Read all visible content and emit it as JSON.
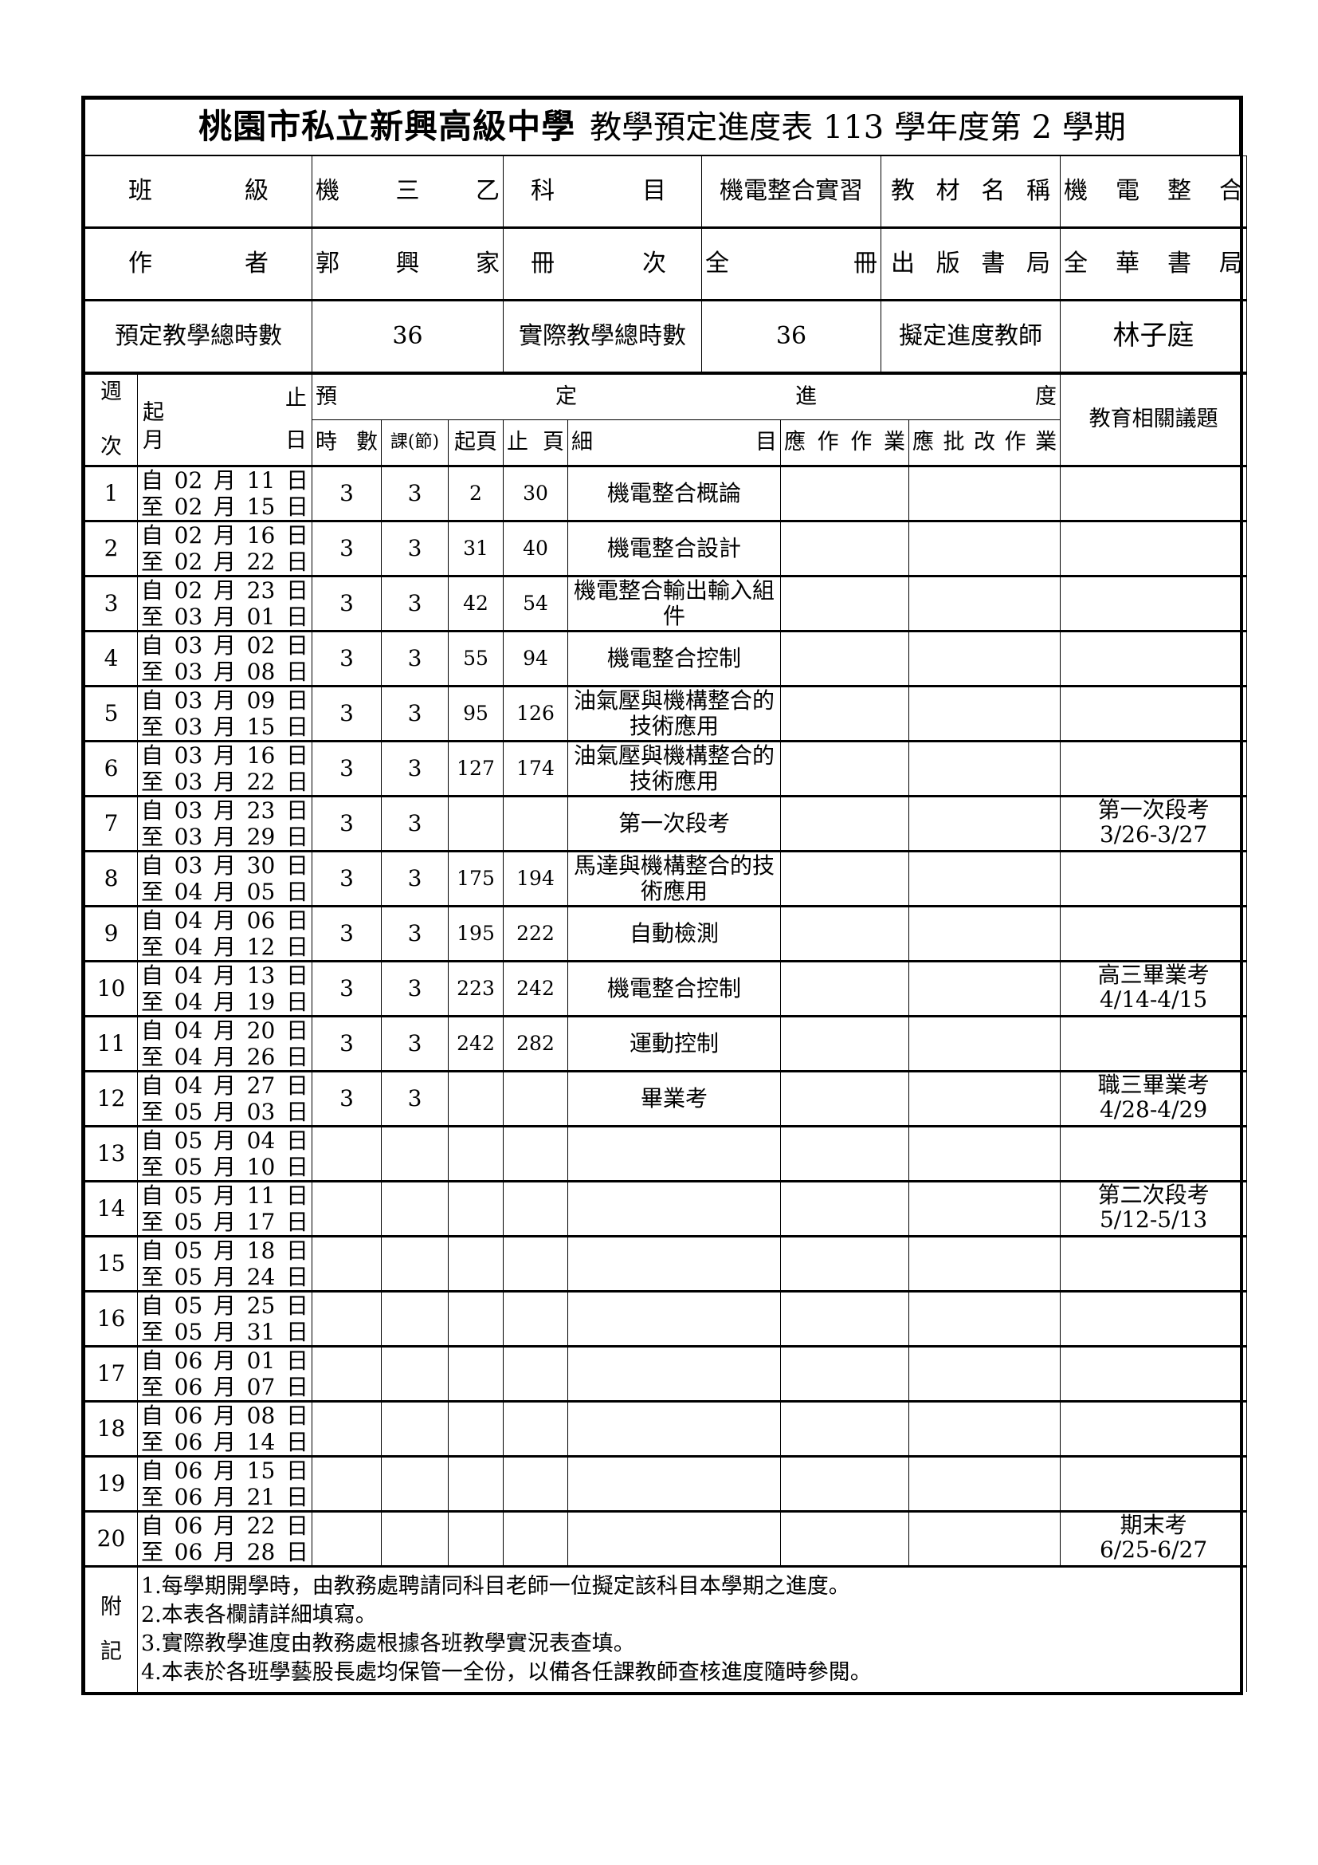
{
  "title": {
    "school": "桃園市私立新興高級中學",
    "subtitle": "教學預定進度表 113 學年度第 2 學期"
  },
  "info": {
    "class_label": [
      "班",
      "級"
    ],
    "class_value": [
      "機",
      "三",
      "乙"
    ],
    "subject_label": [
      "科",
      "目"
    ],
    "subject_value": "機電整合實習",
    "textbook_label": [
      "教",
      "材",
      "名",
      "稱"
    ],
    "textbook_value": [
      "機",
      "電",
      "整",
      "合"
    ],
    "author_label": [
      "作",
      "者"
    ],
    "author_value": [
      "郭",
      "興",
      "家"
    ],
    "volume_label": [
      "冊",
      "次"
    ],
    "volume_value": [
      "全",
      "冊"
    ],
    "publisher_label": [
      "出",
      "版",
      "書",
      "局"
    ],
    "publisher_value": [
      "全",
      "華",
      "書",
      "局"
    ],
    "planned_hours_label": "預定教學總時數",
    "planned_hours": "36",
    "actual_hours_label": "實際教學總時數",
    "actual_hours": "36",
    "teacher_label": "擬定進度教師",
    "teacher": "林子庭"
  },
  "header": {
    "week": [
      "週",
      "次"
    ],
    "start": "起",
    "end": "止",
    "month": "月",
    "day": "日",
    "progress": [
      "預",
      "定",
      "進",
      "度"
    ],
    "hours": [
      "時",
      "數"
    ],
    "lessons": "課(節)",
    "start_page": [
      "起",
      "頁"
    ],
    "end_page": [
      "止",
      "頁"
    ],
    "detail": [
      "細",
      "目"
    ],
    "homework": [
      "應",
      "作",
      "作",
      "業"
    ],
    "correction": [
      "應",
      "批",
      "改",
      "作",
      "業"
    ],
    "issues": "教育相關議題"
  },
  "date_words": {
    "from": "自",
    "to": "至",
    "month": "月",
    "day": "日"
  },
  "weeks": [
    {
      "week": "1",
      "from": [
        "02",
        "11"
      ],
      "to": [
        "02",
        "15"
      ],
      "hours": "3",
      "lessons": "3",
      "start": "2",
      "end": "30",
      "detail": "機電整合概論",
      "issue": [
        "",
        ""
      ]
    },
    {
      "week": "2",
      "from": [
        "02",
        "16"
      ],
      "to": [
        "02",
        "22"
      ],
      "hours": "3",
      "lessons": "3",
      "start": "31",
      "end": "40",
      "detail": "機電整合設計",
      "issue": [
        "",
        ""
      ]
    },
    {
      "week": "3",
      "from": [
        "02",
        "23"
      ],
      "to": [
        "03",
        "01"
      ],
      "hours": "3",
      "lessons": "3",
      "start": "42",
      "end": "54",
      "detail": "機電整合輸出輸入組件",
      "issue": [
        "",
        ""
      ]
    },
    {
      "week": "4",
      "from": [
        "03",
        "02"
      ],
      "to": [
        "03",
        "08"
      ],
      "hours": "3",
      "lessons": "3",
      "start": "55",
      "end": "94",
      "detail": "機電整合控制",
      "issue": [
        "",
        ""
      ]
    },
    {
      "week": "5",
      "from": [
        "03",
        "09"
      ],
      "to": [
        "03",
        "15"
      ],
      "hours": "3",
      "lessons": "3",
      "start": "95",
      "end": "126",
      "detail": "油氣壓與機構整合的技術應用",
      "issue": [
        "",
        ""
      ]
    },
    {
      "week": "6",
      "from": [
        "03",
        "16"
      ],
      "to": [
        "03",
        "22"
      ],
      "hours": "3",
      "lessons": "3",
      "start": "127",
      "end": "174",
      "detail": "油氣壓與機構整合的技術應用",
      "issue": [
        "",
        ""
      ]
    },
    {
      "week": "7",
      "from": [
        "03",
        "23"
      ],
      "to": [
        "03",
        "29"
      ],
      "hours": "3",
      "lessons": "3",
      "start": "",
      "end": "",
      "detail": "第一次段考",
      "issue": [
        "第一次段考",
        "3/26-3/27"
      ]
    },
    {
      "week": "8",
      "from": [
        "03",
        "30"
      ],
      "to": [
        "04",
        "05"
      ],
      "hours": "3",
      "lessons": "3",
      "start": "175",
      "end": "194",
      "detail": "馬達與機構整合的技術應用",
      "issue": [
        "",
        ""
      ]
    },
    {
      "week": "9",
      "from": [
        "04",
        "06"
      ],
      "to": [
        "04",
        "12"
      ],
      "hours": "3",
      "lessons": "3",
      "start": "195",
      "end": "222",
      "detail": "自動檢測",
      "issue": [
        "",
        ""
      ]
    },
    {
      "week": "10",
      "from": [
        "04",
        "13"
      ],
      "to": [
        "04",
        "19"
      ],
      "hours": "3",
      "lessons": "3",
      "start": "223",
      "end": "242",
      "detail": "機電整合控制",
      "issue": [
        "高三畢業考",
        "4/14-4/15"
      ]
    },
    {
      "week": "11",
      "from": [
        "04",
        "20"
      ],
      "to": [
        "04",
        "26"
      ],
      "hours": "3",
      "lessons": "3",
      "start": "242",
      "end": "282",
      "detail": "運動控制",
      "issue": [
        "",
        ""
      ]
    },
    {
      "week": "12",
      "from": [
        "04",
        "27"
      ],
      "to": [
        "05",
        "03"
      ],
      "hours": "3",
      "lessons": "3",
      "start": "",
      "end": "",
      "detail": "畢業考",
      "issue": [
        "職三畢業考",
        "4/28-4/29"
      ]
    },
    {
      "week": "13",
      "from": [
        "05",
        "04"
      ],
      "to": [
        "05",
        "10"
      ],
      "hours": "",
      "lessons": "",
      "start": "",
      "end": "",
      "detail": "",
      "issue": [
        "",
        ""
      ]
    },
    {
      "week": "14",
      "from": [
        "05",
        "11"
      ],
      "to": [
        "05",
        "17"
      ],
      "hours": "",
      "lessons": "",
      "start": "",
      "end": "",
      "detail": "",
      "issue": [
        "第二次段考",
        "5/12-5/13"
      ]
    },
    {
      "week": "15",
      "from": [
        "05",
        "18"
      ],
      "to": [
        "05",
        "24"
      ],
      "hours": "",
      "lessons": "",
      "start": "",
      "end": "",
      "detail": "",
      "issue": [
        "",
        ""
      ]
    },
    {
      "week": "16",
      "from": [
        "05",
        "25"
      ],
      "to": [
        "05",
        "31"
      ],
      "hours": "",
      "lessons": "",
      "start": "",
      "end": "",
      "detail": "",
      "issue": [
        "",
        ""
      ]
    },
    {
      "week": "17",
      "from": [
        "06",
        "01"
      ],
      "to": [
        "06",
        "07"
      ],
      "hours": "",
      "lessons": "",
      "start": "",
      "end": "",
      "detail": "",
      "issue": [
        "",
        ""
      ]
    },
    {
      "week": "18",
      "from": [
        "06",
        "08"
      ],
      "to": [
        "06",
        "14"
      ],
      "hours": "",
      "lessons": "",
      "start": "",
      "end": "",
      "detail": "",
      "issue": [
        "",
        ""
      ]
    },
    {
      "week": "19",
      "from": [
        "06",
        "15"
      ],
      "to": [
        "06",
        "21"
      ],
      "hours": "",
      "lessons": "",
      "start": "",
      "end": "",
      "detail": "",
      "issue": [
        "",
        ""
      ]
    },
    {
      "week": "20",
      "from": [
        "06",
        "22"
      ],
      "to": [
        "06",
        "28"
      ],
      "hours": "",
      "lessons": "",
      "start": "",
      "end": "",
      "detail": "",
      "issue": [
        "期末考",
        "6/25-6/27"
      ]
    }
  ],
  "notes": {
    "label": [
      "附",
      "記"
    ],
    "items": [
      "1.每學期開學時，由教務處聘請同科目老師一位擬定該科目本學期之進度。",
      "2.本表各欄請詳細填寫。",
      "3.實際教學進度由教務處根據各班教學實況表查填。",
      "4.本表於各班學藝股長處均保管一全份，以備各任課教師查核進度隨時參閱。"
    ]
  }
}
